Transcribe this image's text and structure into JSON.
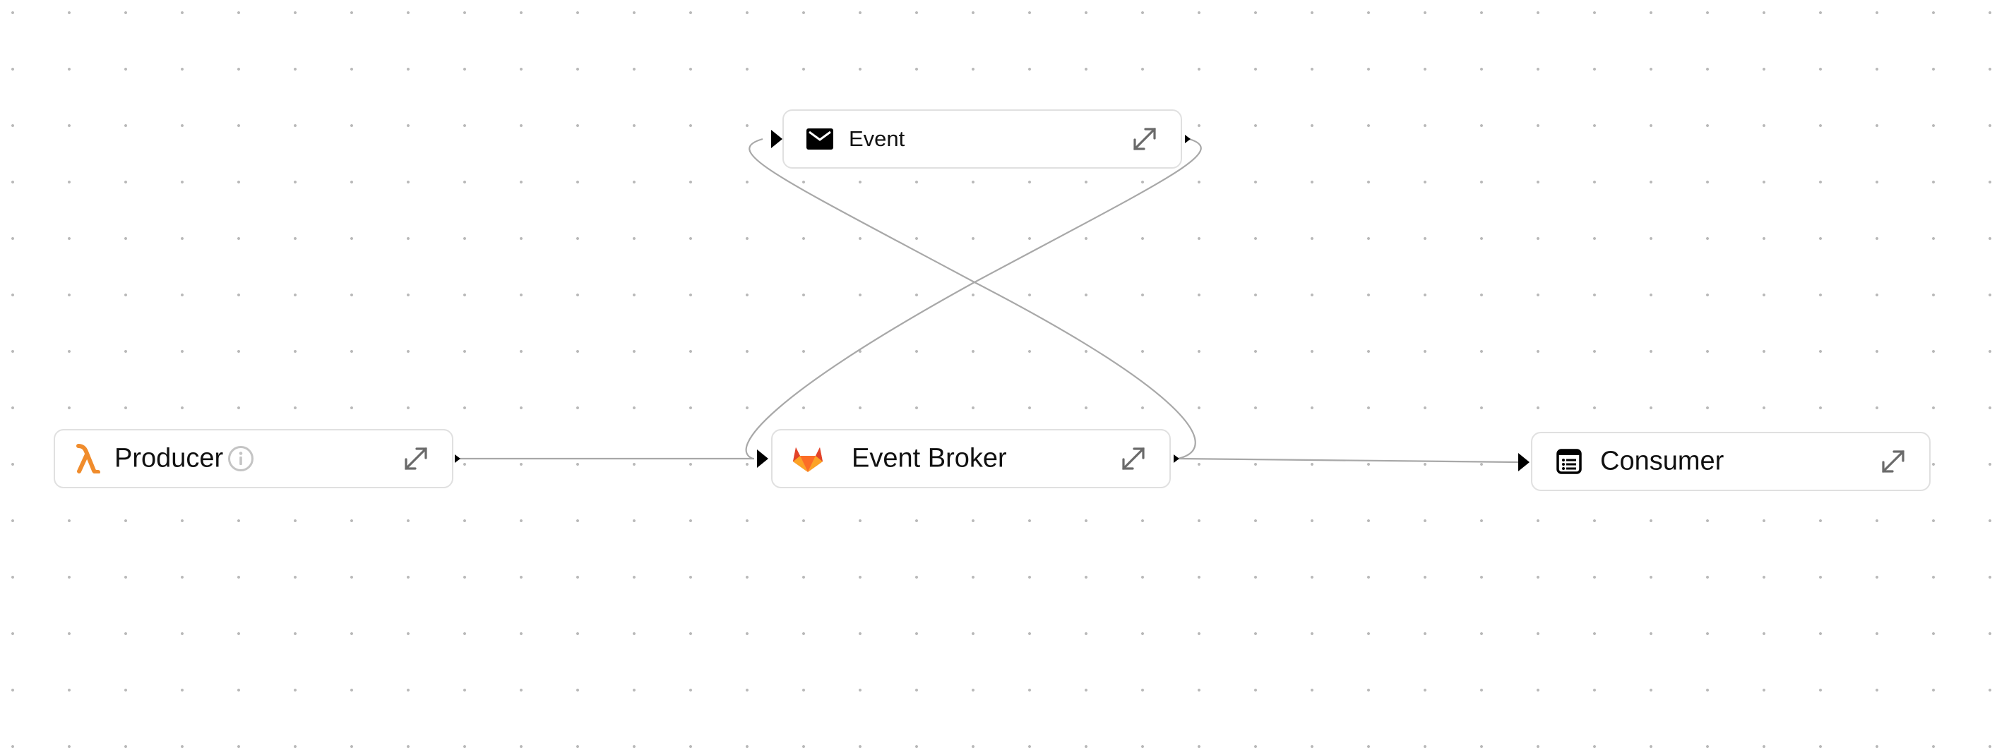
{
  "nodes": {
    "producer": {
      "label": "Producer",
      "icon": "lambda-icon",
      "has_info": true
    },
    "event": {
      "label": "Event",
      "icon": "envelope-icon"
    },
    "broker": {
      "label": "Event Broker",
      "icon": "gitlab-fox-icon"
    },
    "consumer": {
      "label": "Consumer",
      "icon": "list-document-icon"
    }
  },
  "edges": [
    {
      "from": "producer",
      "to": "broker"
    },
    {
      "from": "event",
      "to": "broker"
    },
    {
      "from": "broker",
      "to": "event"
    },
    {
      "from": "broker",
      "to": "consumer"
    }
  ],
  "colors": {
    "node_border": "#e0e0e0",
    "edge": "#a8a8a8",
    "arrow": "#000000",
    "lambda": "#f08c2c",
    "expand_icon": "#6a6a6a",
    "info_icon": "#c4c4c4"
  }
}
